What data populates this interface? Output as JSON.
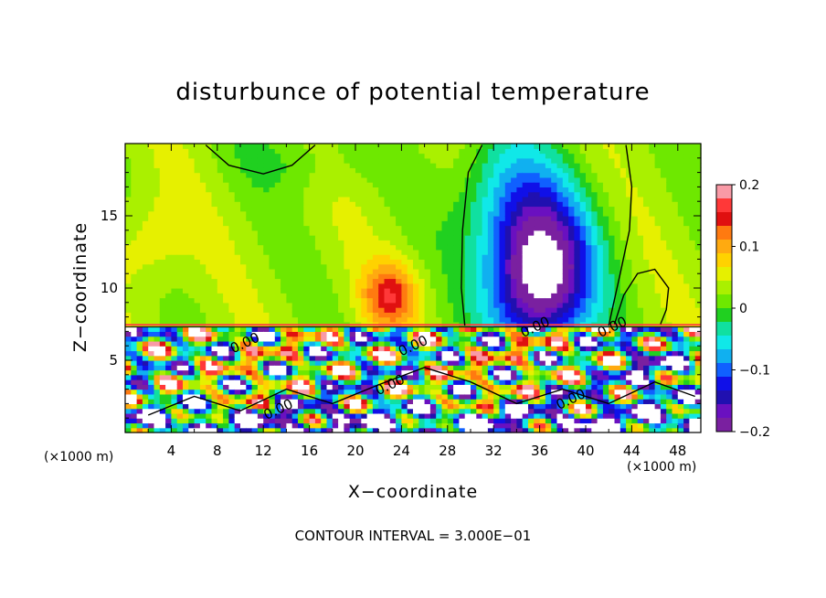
{
  "chart_data": {
    "type": "heatmap",
    "title": "disturbunce of potential temperature",
    "xlabel": "X−coordinate",
    "ylabel": "Z−coordinate",
    "x_unit": "(×1000 m)",
    "y_unit": "(×1000 m)",
    "xlim": [
      0,
      50
    ],
    "ylim": [
      0,
      20
    ],
    "x_ticks": [
      4,
      8,
      12,
      16,
      20,
      24,
      28,
      32,
      36,
      40,
      44,
      48
    ],
    "x_tick_labels": [
      "4",
      "8",
      "12",
      "16",
      "20",
      "24",
      "28",
      "32",
      "36",
      "40",
      "44",
      "48"
    ],
    "y_ticks": [
      5,
      10,
      15
    ],
    "y_tick_labels": [
      "5",
      "10",
      "15"
    ],
    "contour_note": "CONTOUR INTERVAL = 3.000E−01",
    "contour_labels": [
      "0.00",
      "0.00",
      "0.00",
      "0.00",
      "0.00",
      "0.00",
      "0.00"
    ],
    "colorbar": {
      "range": [
        -0.2,
        0.2
      ],
      "tick_values": [
        0.2,
        0.1,
        0,
        -0.1,
        -0.2
      ],
      "tick_labels": [
        "0.2",
        "0.1",
        "0",
        "−0.1",
        "−0.2"
      ],
      "colors": [
        "#f99aa6",
        "#ff3838",
        "#e01010",
        "#ff7a10",
        "#ffaa10",
        "#ffd200",
        "#e6f000",
        "#aaf000",
        "#6ee800",
        "#20d020",
        "#10e0a0",
        "#10e8e8",
        "#10b0f0",
        "#1060ff",
        "#1010e8",
        "#2010b0",
        "#6a10c0",
        "#7a20a0"
      ]
    },
    "annotations": [
      {
        "text": "0.00",
        "x": 13.3,
        "z": 1.6
      },
      {
        "text": "0.00",
        "x": 23.0,
        "z": 3.3
      },
      {
        "text": "0.00",
        "x": 25.0,
        "z": 6.0
      },
      {
        "text": "0.00",
        "x": 35.6,
        "z": 7.3
      },
      {
        "text": "0.00",
        "x": 42.3,
        "z": 7.3
      },
      {
        "text": "0.00",
        "x": 38.7,
        "z": 2.3
      },
      {
        "text": "0.00",
        "x": 10.4,
        "z": 6.2
      }
    ],
    "field_description": {
      "upper_layer_z": [
        7.5,
        20
      ],
      "positive_anomaly_x": [
        20,
        26
      ],
      "negative_anomaly_x": [
        28,
        44
      ]
    }
  }
}
